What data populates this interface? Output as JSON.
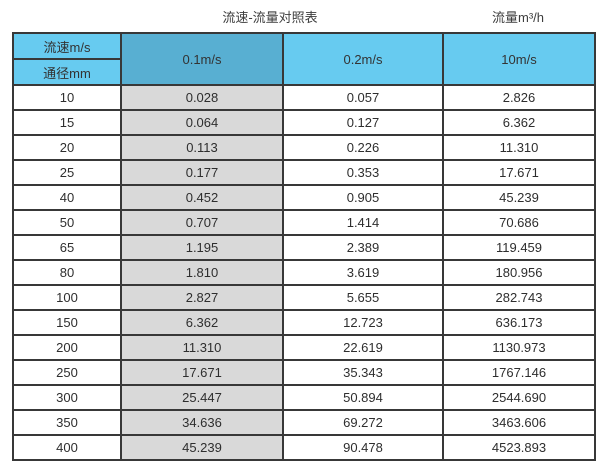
{
  "header": {
    "title": "流速-流量对照表",
    "flow_unit_label": "流量m³/h"
  },
  "table": {
    "corner": {
      "top": "流速m/s",
      "bottom": "通径mm"
    },
    "velocity_headers": [
      "0.1m/s",
      "0.2m/s",
      "10m/s"
    ],
    "rows": [
      [
        "10",
        "0.028",
        "0.057",
        "2.826"
      ],
      [
        "15",
        "0.064",
        "0.127",
        "6.362"
      ],
      [
        "20",
        "0.113",
        "0.226",
        "11.310"
      ],
      [
        "25",
        "0.177",
        "0.353",
        "17.671"
      ],
      [
        "40",
        "0.452",
        "0.905",
        "45.239"
      ],
      [
        "50",
        "0.707",
        "1.414",
        "70.686"
      ],
      [
        "65",
        "1.195",
        "2.389",
        "119.459"
      ],
      [
        "80",
        "1.810",
        "3.619",
        "180.956"
      ],
      [
        "100",
        "2.827",
        "5.655",
        "282.743"
      ],
      [
        "150",
        "6.362",
        "12.723",
        "636.173"
      ],
      [
        "200",
        "11.310",
        "22.619",
        "1130.973"
      ],
      [
        "250",
        "17.671",
        "35.343",
        "1767.146"
      ],
      [
        "300",
        "25.447",
        "50.894",
        "2544.690"
      ],
      [
        "350",
        "34.636",
        "69.272",
        "3463.606"
      ],
      [
        "400",
        "45.239",
        "90.478",
        "4523.893"
      ]
    ]
  },
  "colors": {
    "header_blue_light": "#67CBF0",
    "header_blue_dark": "#58AFD2",
    "column_gray": "#D9D9D9",
    "border": "#383838",
    "text": "#2e2e2e"
  },
  "chart_data": {
    "type": "table",
    "title": "流速-流量对照表",
    "unit_label": "流量m³/h",
    "row_header": "通径mm",
    "col_header": "流速m/s",
    "columns": [
      "0.1m/s",
      "0.2m/s",
      "10m/s"
    ],
    "diameters_mm": [
      10,
      15,
      20,
      25,
      40,
      50,
      65,
      80,
      100,
      150,
      200,
      250,
      300,
      350,
      400
    ],
    "series": [
      {
        "name": "0.1m/s",
        "values": [
          0.028,
          0.064,
          0.113,
          0.177,
          0.452,
          0.707,
          1.195,
          1.81,
          2.827,
          6.362,
          11.31,
          17.671,
          25.447,
          34.636,
          45.239
        ]
      },
      {
        "name": "0.2m/s",
        "values": [
          0.057,
          0.127,
          0.226,
          0.353,
          0.905,
          1.414,
          2.389,
          3.619,
          5.655,
          12.723,
          22.619,
          35.343,
          50.894,
          69.272,
          90.478
        ]
      },
      {
        "name": "10m/s",
        "values": [
          2.826,
          6.362,
          11.31,
          17.671,
          45.239,
          70.686,
          119.459,
          180.956,
          282.743,
          636.173,
          1130.973,
          1767.146,
          2544.69,
          3463.606,
          4523.893
        ]
      }
    ]
  }
}
